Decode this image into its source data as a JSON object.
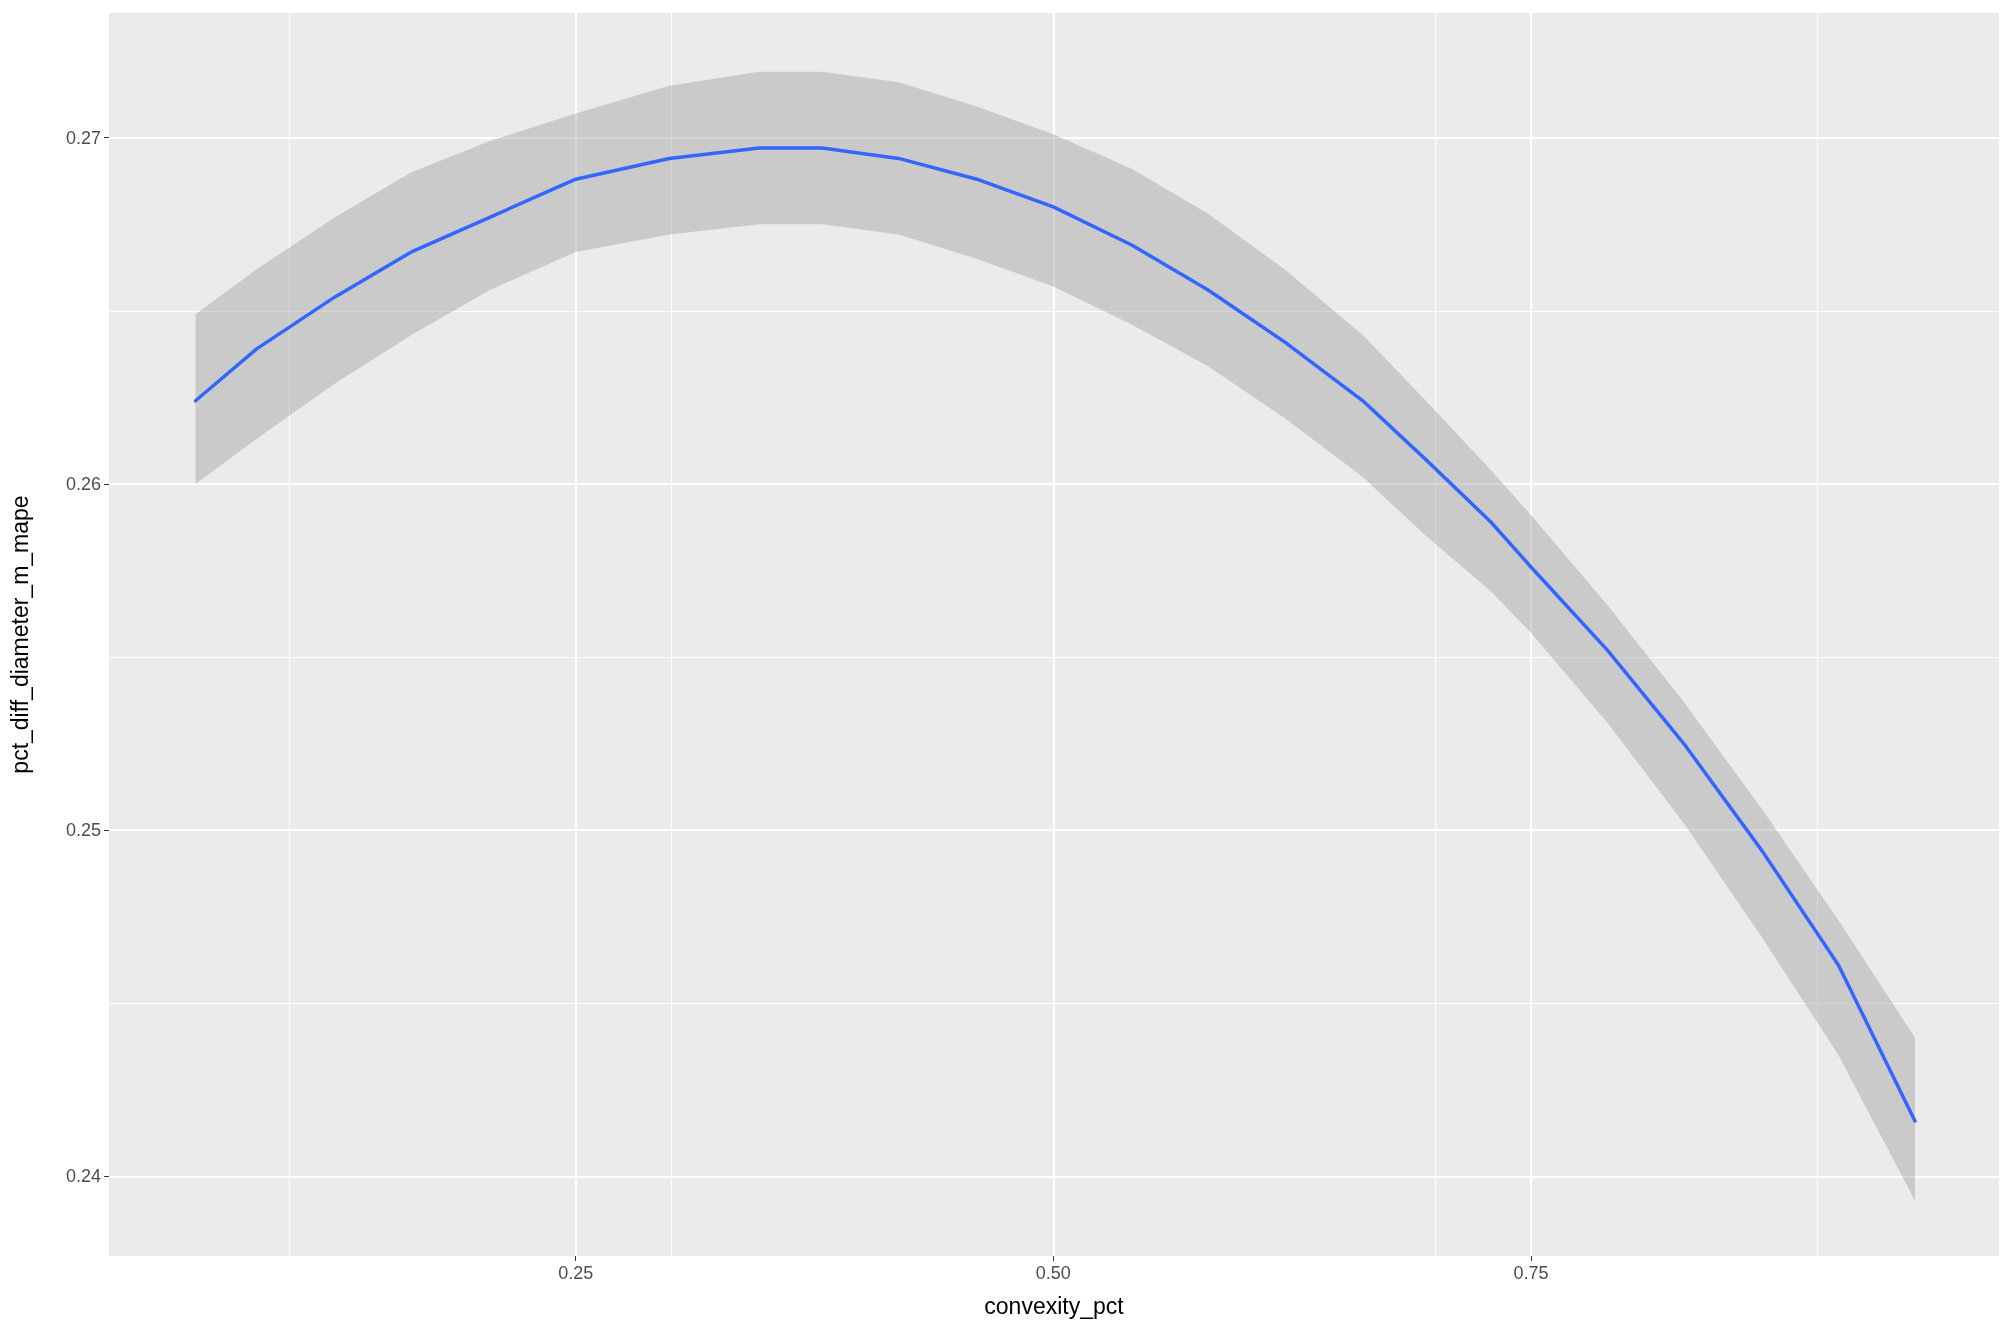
{
  "chart_data": {
    "type": "line",
    "xlabel": "convexity_pct",
    "ylabel": "pct_diff_diameter_m_mape",
    "xlim": [
      0.0057,
      0.995
    ],
    "ylim": [
      0.2377,
      0.2736
    ],
    "xticks": [
      {
        "value": 0.25,
        "label": "0.25"
      },
      {
        "value": 0.5,
        "label": "0.50"
      },
      {
        "value": 0.75,
        "label": "0.75"
      }
    ],
    "yticks": [
      0.24,
      0.25,
      0.26,
      0.27
    ],
    "grid": true,
    "marker": "none",
    "line_style": "solid",
    "series": [
      {
        "color": "#3366ff",
        "x": [
          0.051,
          0.083,
          0.124,
          0.164,
          0.205,
          0.25,
          0.299,
          0.346,
          0.379,
          0.419,
          0.46,
          0.5,
          0.541,
          0.581,
          0.621,
          0.662,
          0.695,
          0.729,
          0.75,
          0.79,
          0.83,
          0.871,
          0.911,
          0.951
        ],
        "values": [
          0.2624,
          0.2639,
          0.2654,
          0.2667,
          0.2677,
          0.2688,
          0.2694,
          0.2697,
          0.2697,
          0.2694,
          0.2688,
          0.268,
          0.2669,
          0.2656,
          0.2641,
          0.2624,
          0.2607,
          0.2589,
          0.2576,
          0.2552,
          0.2525,
          0.2494,
          0.2461,
          0.2416
        ],
        "upper": [
          0.2649,
          0.2662,
          0.2677,
          0.269,
          0.2699,
          0.2707,
          0.2715,
          0.2719,
          0.2719,
          0.2716,
          0.2709,
          0.2701,
          0.2691,
          0.2678,
          0.2662,
          0.2643,
          0.2624,
          0.2604,
          0.2591,
          0.2565,
          0.2537,
          0.2506,
          0.2474,
          0.244
        ],
        "lower": [
          0.26,
          0.2613,
          0.2629,
          0.2643,
          0.2656,
          0.2667,
          0.2672,
          0.2675,
          0.2675,
          0.2672,
          0.2665,
          0.2657,
          0.2646,
          0.2634,
          0.2619,
          0.2602,
          0.2585,
          0.2569,
          0.2557,
          0.2531,
          0.2502,
          0.2469,
          0.2435,
          0.2393
        ]
      }
    ]
  }
}
